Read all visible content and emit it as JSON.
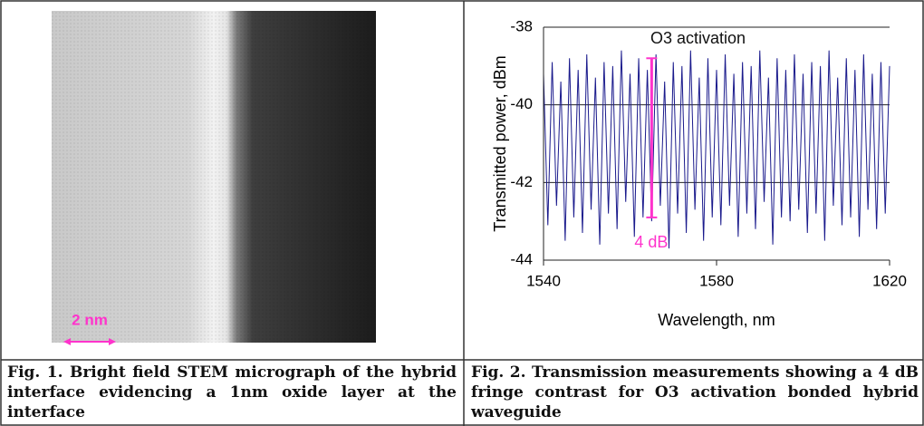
{
  "micrograph": {
    "scale_label": "2 nm",
    "caption": "Fig. 1. Bright field STEM micrograph of the hybrid interface evidencing a 1nm oxide layer at the interface"
  },
  "chart_data": {
    "type": "line",
    "y_label": "Transmitted power, dBm",
    "x_label": "Wavelength, nm",
    "annotation": "O3 activation",
    "xlim": [
      1540,
      1620
    ],
    "xticks": [
      1540,
      1580,
      1620
    ],
    "ylim": [
      -44,
      -38
    ],
    "yticks": [
      -38,
      -40,
      -42,
      -44
    ],
    "grid": true,
    "x": [
      1540,
      1541,
      1542,
      1543,
      1544,
      1545,
      1546,
      1547,
      1548,
      1549,
      1550,
      1551,
      1552,
      1553,
      1554,
      1555,
      1556,
      1557,
      1558,
      1559,
      1560,
      1561,
      1562,
      1563,
      1564,
      1565,
      1566,
      1567,
      1568,
      1569,
      1570,
      1571,
      1572,
      1573,
      1574,
      1575,
      1576,
      1577,
      1578,
      1579,
      1580,
      1581,
      1582,
      1583,
      1584,
      1585,
      1586,
      1587,
      1588,
      1589,
      1590,
      1591,
      1592,
      1593,
      1594,
      1595,
      1596,
      1597,
      1598,
      1599,
      1600,
      1601,
      1602,
      1603,
      1604,
      1605,
      1606,
      1607,
      1608,
      1609,
      1610,
      1611,
      1612,
      1613,
      1614,
      1615,
      1616,
      1617,
      1618,
      1619,
      1620
    ],
    "series": [
      {
        "color": "#1a1a8c",
        "values": [
          -39.2,
          -43.1,
          -38.9,
          -42.6,
          -39.4,
          -43.5,
          -38.8,
          -42.9,
          -39.1,
          -43.3,
          -38.7,
          -42.7,
          -39.3,
          -43.6,
          -38.9,
          -42.8,
          -39.0,
          -43.2,
          -38.6,
          -42.5,
          -39.2,
          -43.4,
          -38.8,
          -42.9,
          -39.1,
          -43.0,
          -38.7,
          -42.6,
          -39.4,
          -43.7,
          -38.9,
          -42.8,
          -39.0,
          -43.3,
          -38.6,
          -42.7,
          -39.3,
          -43.5,
          -38.8,
          -42.9,
          -39.1,
          -43.1,
          -38.7,
          -42.6,
          -39.2,
          -43.4,
          -38.9,
          -42.8,
          -39.0,
          -43.2,
          -38.6,
          -42.5,
          -39.3,
          -43.6,
          -38.8,
          -42.9,
          -39.1,
          -43.0,
          -38.7,
          -42.7,
          -39.2,
          -43.3,
          -38.9,
          -42.8,
          -39.0,
          -43.5,
          -38.6,
          -42.6,
          -39.3,
          -43.1,
          -38.8,
          -42.9,
          -39.1,
          -43.4,
          -38.7,
          -42.7,
          -39.2,
          -43.2,
          -38.9,
          -42.8,
          -39.0
        ]
      }
    ],
    "marker": {
      "x": 1565,
      "y": [
        -38.8,
        -42.9
      ],
      "label": "4 dB",
      "color": "#ff33cc"
    }
  },
  "chart_caption": "Fig. 2. Transmission measurements showing a 4 dB fringe contrast for O3 activation bonded hybrid waveguide"
}
